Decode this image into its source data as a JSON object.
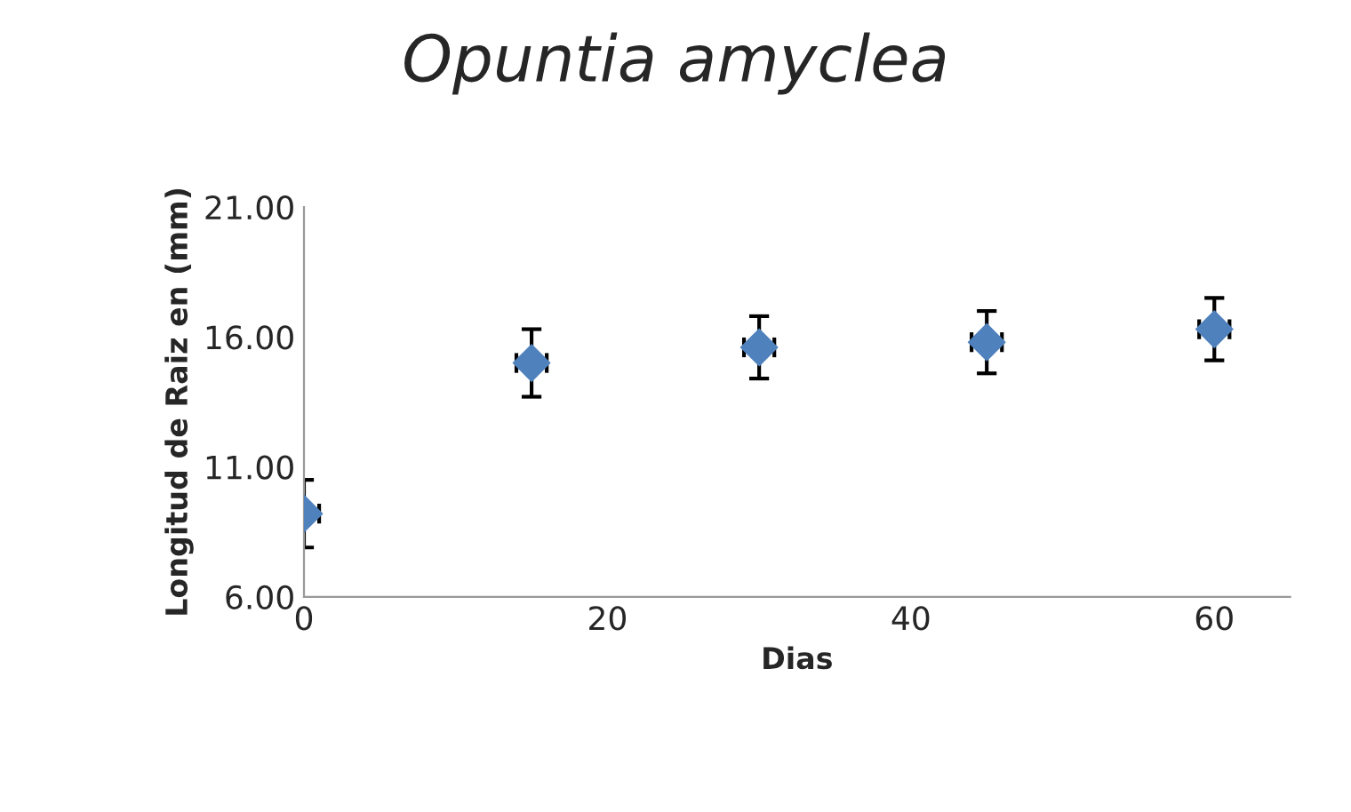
{
  "chart_data": {
    "type": "scatter",
    "title": "Opuntia amyclea",
    "xlabel": "Dias",
    "ylabel": "Longitud de Raiz en (mm)",
    "x": [
      0,
      15,
      30,
      45,
      60
    ],
    "series": [
      {
        "color": "#4f81bd",
        "values": [
          9.2,
          15.0,
          15.6,
          15.8,
          16.3
        ],
        "errors": [
          1.3,
          1.3,
          1.2,
          1.2,
          1.2
        ],
        "xerrors": [
          1,
          1,
          1,
          1,
          1
        ]
      }
    ],
    "xlim": [
      0,
      65
    ],
    "xticks": [
      0,
      20,
      40,
      60
    ],
    "ylim": [
      6,
      21
    ],
    "yticks": [
      {
        "value": 6,
        "label": "6.00"
      },
      {
        "value": 11,
        "label": "11.00"
      },
      {
        "value": 16,
        "label": "16.00"
      },
      {
        "value": 21,
        "label": "21.00"
      }
    ],
    "marker": "diamond",
    "grid": false,
    "legend": false
  }
}
